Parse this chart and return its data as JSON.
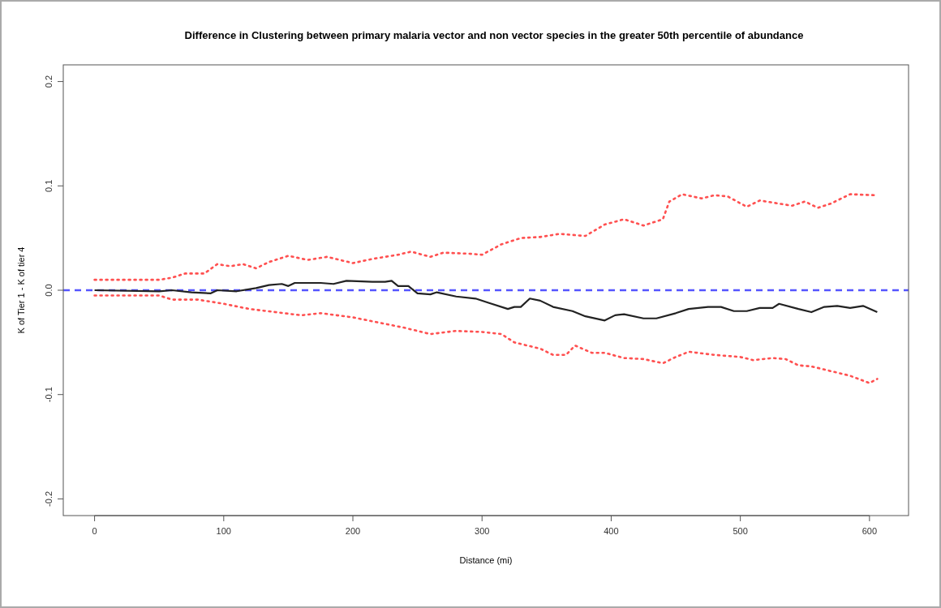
{
  "chart_data": {
    "type": "line",
    "title": "Difference in Clustering between primary malaria vector and non vector species in the greater 50th percentile of abundance",
    "xlabel": "Distance (mi)",
    "ylabel": "K of Tier 1 - K of tier 4",
    "xlim": [
      -24.24,
      630.24
    ],
    "xticks": [
      0,
      100,
      200,
      300,
      400,
      500,
      600
    ],
    "ylim": [
      -0.216,
      0.216
    ],
    "yticks": [
      -0.2,
      -0.1,
      {
        "value": 0,
        "label": "0.0"
      },
      0.1,
      0.2
    ],
    "grid": false,
    "ref_lines": [
      {
        "axis": "y",
        "value": 0,
        "color": "#5555ff",
        "line_style": "dashed"
      }
    ],
    "series": [
      {
        "color": "#ff5050",
        "line_style": "dotted",
        "x": [
          0,
          50,
          60,
          70,
          85,
          95,
          105,
          115,
          125,
          135,
          150,
          165,
          180,
          200,
          215,
          235,
          245,
          260,
          270,
          290,
          300,
          315,
          330,
          345,
          360,
          380,
          395,
          410,
          425,
          440,
          445,
          455,
          470,
          480,
          490,
          505,
          515,
          530,
          540,
          550,
          560,
          570,
          585,
          606
        ],
        "values": [
          0.01,
          0.01,
          0.012,
          0.016,
          0.016,
          0.025,
          0.023,
          0.025,
          0.021,
          0.027,
          0.033,
          0.029,
          0.032,
          0.026,
          0.03,
          0.034,
          0.037,
          0.032,
          0.036,
          0.035,
          0.034,
          0.044,
          0.05,
          0.051,
          0.054,
          0.052,
          0.063,
          0.068,
          0.062,
          0.068,
          0.085,
          0.092,
          0.088,
          0.091,
          0.09,
          0.08,
          0.086,
          0.083,
          0.081,
          0.085,
          0.079,
          0.083,
          0.092,
          0.091
        ]
      },
      {
        "color": "#ff5050",
        "line_style": "dotted",
        "x": [
          0,
          50,
          60,
          80,
          100,
          120,
          140,
          160,
          175,
          200,
          220,
          240,
          260,
          280,
          300,
          315,
          325,
          345,
          355,
          365,
          372,
          385,
          395,
          410,
          425,
          440,
          450,
          460,
          480,
          500,
          510,
          525,
          535,
          545,
          555,
          565,
          585,
          600,
          606
        ],
        "values": [
          -0.005,
          -0.005,
          -0.009,
          -0.009,
          -0.013,
          -0.018,
          -0.021,
          -0.024,
          -0.022,
          -0.026,
          -0.031,
          -0.036,
          -0.042,
          -0.039,
          -0.04,
          -0.042,
          -0.05,
          -0.056,
          -0.062,
          -0.062,
          -0.053,
          -0.06,
          -0.06,
          -0.065,
          -0.066,
          -0.07,
          -0.064,
          -0.059,
          -0.062,
          -0.064,
          -0.067,
          -0.065,
          -0.066,
          -0.072,
          -0.073,
          -0.076,
          -0.082,
          -0.089,
          -0.085
        ]
      },
      {
        "color": "#222222",
        "line_style": "solid",
        "x": [
          0,
          50,
          60,
          75,
          90,
          95,
          110,
          125,
          135,
          145,
          150,
          155,
          175,
          185,
          195,
          215,
          225,
          230,
          235,
          243,
          250,
          260,
          265,
          280,
          295,
          305,
          320,
          325,
          330,
          337,
          345,
          355,
          370,
          380,
          395,
          403,
          410,
          425,
          435,
          450,
          460,
          475,
          485,
          495,
          505,
          515,
          525,
          530,
          545,
          555,
          565,
          575,
          585,
          595,
          606
        ],
        "values": [
          0,
          -0.001,
          0,
          -0.002,
          -0.003,
          0,
          -0.001,
          0.002,
          0.005,
          0.006,
          0.004,
          0.007,
          0.007,
          0.006,
          0.009,
          0.008,
          0.008,
          0.009,
          0.004,
          0.004,
          -0.003,
          -0.004,
          -0.002,
          -0.006,
          -0.008,
          -0.012,
          -0.018,
          -0.016,
          -0.016,
          -0.008,
          -0.01,
          -0.016,
          -0.02,
          -0.025,
          -0.029,
          -0.024,
          -0.023,
          -0.027,
          -0.027,
          -0.022,
          -0.018,
          -0.016,
          -0.016,
          -0.02,
          -0.02,
          -0.017,
          -0.017,
          -0.013,
          -0.018,
          -0.021,
          -0.016,
          -0.015,
          -0.017,
          -0.015,
          -0.021
        ]
      }
    ]
  }
}
